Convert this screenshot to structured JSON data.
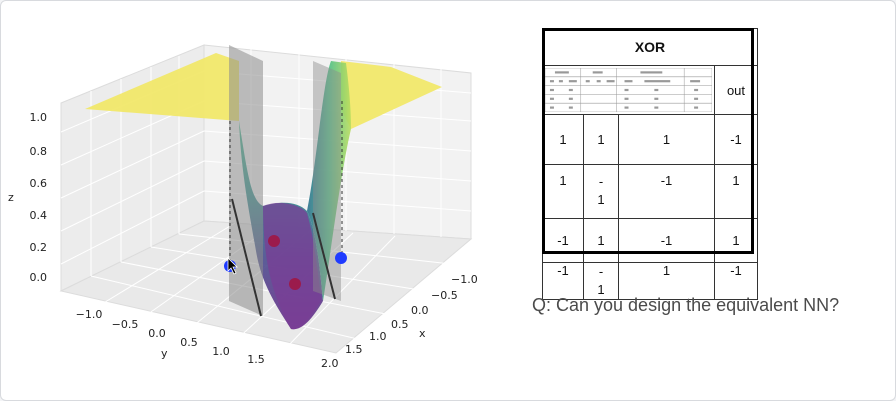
{
  "plot": {
    "z_axis_label": "z",
    "x_axis_label": "x",
    "y_axis_label": "y",
    "z_ticks": [
      "0.0",
      "0.2",
      "0.4",
      "0.6",
      "0.8",
      "1.0"
    ],
    "x_ticks": [
      "−1.0",
      "−0.5",
      "0.0",
      "0.5",
      "1.0",
      "1.5",
      "2.0"
    ],
    "y_ticks": [
      "−1.0",
      "−0.5",
      "0.0",
      "0.5",
      "1.0",
      "1.5"
    ],
    "colors": {
      "surface_high": "#f3e96b",
      "surface_mid": "#3bb08f",
      "surface_low": "#5e2b86",
      "blue_point": "#1f3bff",
      "red_point": "#9b1b4c"
    }
  },
  "table": {
    "title": "XOR",
    "out_header": "out",
    "rows": [
      {
        "a": "1",
        "b": "1",
        "c": "1",
        "out": "-1"
      },
      {
        "a": "1",
        "b_top": "-",
        "b_bottom": "1",
        "c": "-1",
        "out": "1"
      },
      {
        "a": "-1",
        "b": "1",
        "c": "-1",
        "out": "1"
      },
      {
        "a": "-1",
        "b_top": "-",
        "b_bottom": "1",
        "c": "1",
        "out": "-1"
      }
    ]
  },
  "question": "Q: Can you design the equivalent NN?"
}
